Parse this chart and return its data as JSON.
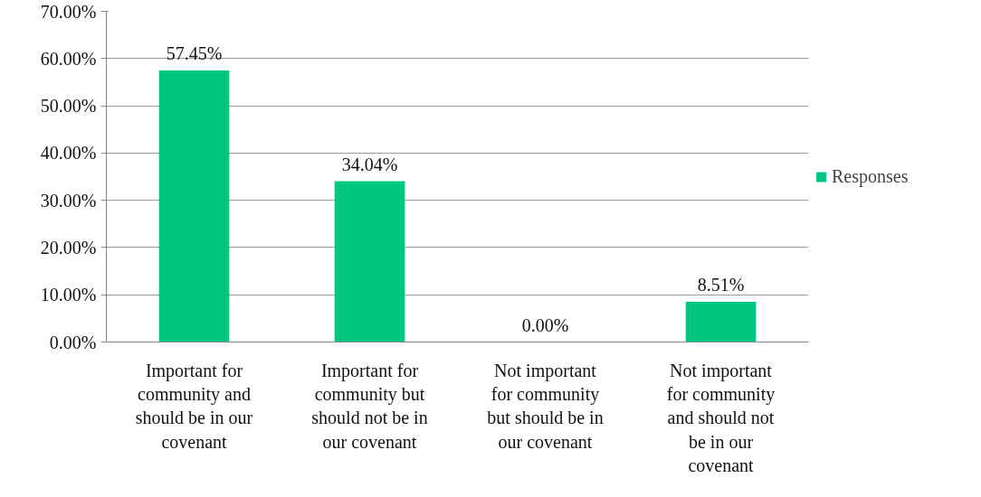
{
  "chart_data": {
    "type": "bar",
    "categories": [
      "Important for community and should be in our covenant",
      "Important for community but should not be in our covenant",
      "Not important for community but should be in our covenant",
      "Not important for community and should not be in our covenant"
    ],
    "series": [
      {
        "name": "Responses",
        "color": "#00c77f",
        "values": [
          57.45,
          34.04,
          0.0,
          8.51
        ]
      }
    ],
    "value_labels": [
      "57.45%",
      "34.04%",
      "0.00%",
      "8.51%"
    ],
    "ylim": [
      0,
      70
    ],
    "yticks": [
      {
        "value": 0,
        "label": "0.00%"
      },
      {
        "value": 10,
        "label": "10.00%"
      },
      {
        "value": 20,
        "label": "20.00%"
      },
      {
        "value": 30,
        "label": "30.00%"
      },
      {
        "value": 40,
        "label": "40.00%"
      },
      {
        "value": 50,
        "label": "50.00%"
      },
      {
        "value": 60,
        "label": "60.00%"
      },
      {
        "value": 70,
        "label": "70.00%"
      }
    ],
    "grid": "y",
    "legend": "right"
  }
}
